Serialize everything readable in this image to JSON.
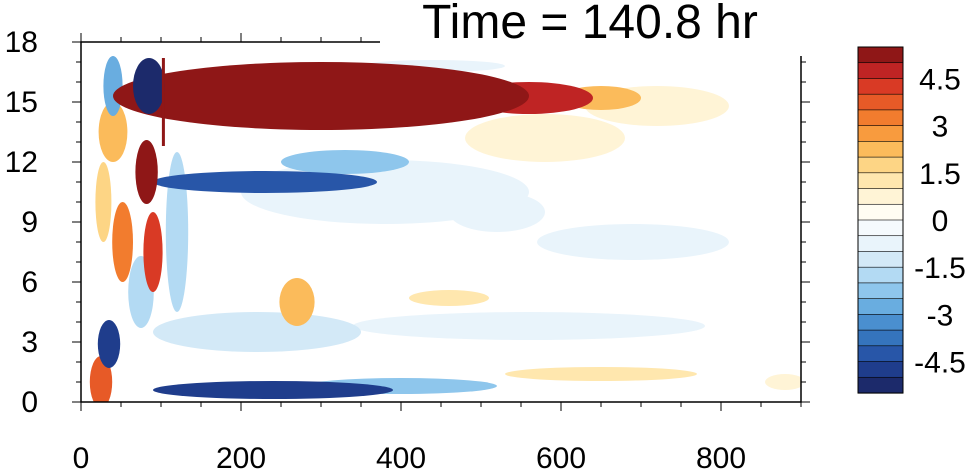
{
  "chart_data": {
    "type": "heatmap",
    "title": "Time = 140.8 hr",
    "xlabel": "",
    "ylabel": "",
    "x_ticks": [
      0,
      200,
      400,
      600,
      800
    ],
    "y_ticks": [
      0,
      3,
      6,
      9,
      12,
      15,
      18
    ],
    "xlim": [
      0,
      900
    ],
    "ylim": [
      0,
      18
    ],
    "grid": false,
    "colorbar": {
      "levels": [
        -5.5,
        -5,
        -4.5,
        -4,
        -3.5,
        -3,
        -2.5,
        -2,
        -1.5,
        -1,
        -0.5,
        0,
        0.5,
        1,
        1.5,
        2,
        2.5,
        3,
        3.5,
        4,
        4.5,
        5,
        5.5
      ],
      "colors": [
        "#1c2a6b",
        "#1f3d8c",
        "#2856a8",
        "#3574bd",
        "#4a8fcf",
        "#69ade0",
        "#8ec6ec",
        "#b3daf3",
        "#d3e9f7",
        "#e9f4fb",
        "#f5fafd",
        "#fffdf3",
        "#fff4d6",
        "#ffe7ae",
        "#fdd585",
        "#fbbb5b",
        "#f89b3e",
        "#f27c2e",
        "#e75a27",
        "#d93a25",
        "#bf2424",
        "#8f1717"
      ],
      "tick_labels": [
        "4.5",
        "3",
        "1.5",
        "0",
        "-1.5",
        "-3",
        "-4.5"
      ],
      "tick_values": [
        4.5,
        3,
        1.5,
        0,
        -1.5,
        -3,
        -4.5
      ]
    },
    "features": [
      {
        "cx": 300,
        "cy": 15.3,
        "rx": 260,
        "ry": 1.7,
        "value": 5.5
      },
      {
        "cx": 560,
        "cy": 15.2,
        "rx": 80,
        "ry": 0.8,
        "value": 4.5
      },
      {
        "cx": 650,
        "cy": 15.2,
        "rx": 50,
        "ry": 0.6,
        "value": 2.0
      },
      {
        "cx": 720,
        "cy": 14.8,
        "rx": 90,
        "ry": 1.0,
        "value": 0.8
      },
      {
        "cx": 580,
        "cy": 13.2,
        "rx": 100,
        "ry": 1.2,
        "value": 0.6
      },
      {
        "cx": 230,
        "cy": 11.0,
        "rx": 140,
        "ry": 0.55,
        "value": -4.5
      },
      {
        "cx": 330,
        "cy": 12.0,
        "rx": 80,
        "ry": 0.6,
        "value": -2.5
      },
      {
        "cx": 380,
        "cy": 10.5,
        "rx": 180,
        "ry": 1.6,
        "value": -0.8
      },
      {
        "cx": 240,
        "cy": 0.6,
        "rx": 150,
        "ry": 0.45,
        "value": -5.0
      },
      {
        "cx": 400,
        "cy": 0.8,
        "rx": 120,
        "ry": 0.4,
        "value": -2.5
      },
      {
        "cx": 220,
        "cy": 3.5,
        "rx": 130,
        "ry": 1.0,
        "value": -1.2
      },
      {
        "cx": 560,
        "cy": 3.8,
        "rx": 220,
        "ry": 0.7,
        "value": -0.8
      },
      {
        "cx": 40,
        "cy": 15.8,
        "rx": 12,
        "ry": 1.5,
        "value": -3.0
      },
      {
        "cx": 40,
        "cy": 13.5,
        "rx": 18,
        "ry": 1.5,
        "value": 2.0
      },
      {
        "cx": 35,
        "cy": 2.9,
        "rx": 14,
        "ry": 1.2,
        "value": -5.0
      },
      {
        "cx": 25,
        "cy": 1.0,
        "rx": 14,
        "ry": 1.3,
        "value": 3.5
      },
      {
        "cx": 52,
        "cy": 8.0,
        "rx": 13,
        "ry": 2.0,
        "value": 3.0
      },
      {
        "cx": 28,
        "cy": 10.0,
        "rx": 10,
        "ry": 2.0,
        "value": 1.5
      },
      {
        "cx": 85,
        "cy": 15.8,
        "rx": 20,
        "ry": 1.4,
        "value": -5.5
      },
      {
        "cx": 82,
        "cy": 11.5,
        "rx": 14,
        "ry": 1.6,
        "value": 5.0
      },
      {
        "cx": 90,
        "cy": 7.5,
        "rx": 12,
        "ry": 2.0,
        "value": 4.0
      },
      {
        "cx": 75,
        "cy": 5.5,
        "rx": 16,
        "ry": 1.8,
        "value": -2.0
      },
      {
        "cx": 120,
        "cy": 8.5,
        "rx": 14,
        "ry": 4.0,
        "value": -2.0
      },
      {
        "cx": 270,
        "cy": 5.0,
        "rx": 22,
        "ry": 1.2,
        "value": 2.0
      },
      {
        "cx": 460,
        "cy": 5.2,
        "rx": 50,
        "ry": 0.4,
        "value": 1.0
      },
      {
        "cx": 650,
        "cy": 1.4,
        "rx": 120,
        "ry": 0.35,
        "value": 1.2
      },
      {
        "cx": 880,
        "cy": 1.0,
        "rx": 25,
        "ry": 0.4,
        "value": 0.8
      },
      {
        "cx": 690,
        "cy": 8.0,
        "rx": 120,
        "ry": 0.9,
        "value": -0.6
      },
      {
        "cx": 520,
        "cy": 9.5,
        "rx": 60,
        "ry": 1.0,
        "value": -0.6
      },
      {
        "cx": 440,
        "cy": 16.8,
        "rx": 90,
        "ry": 0.3,
        "value": -0.8
      }
    ]
  }
}
